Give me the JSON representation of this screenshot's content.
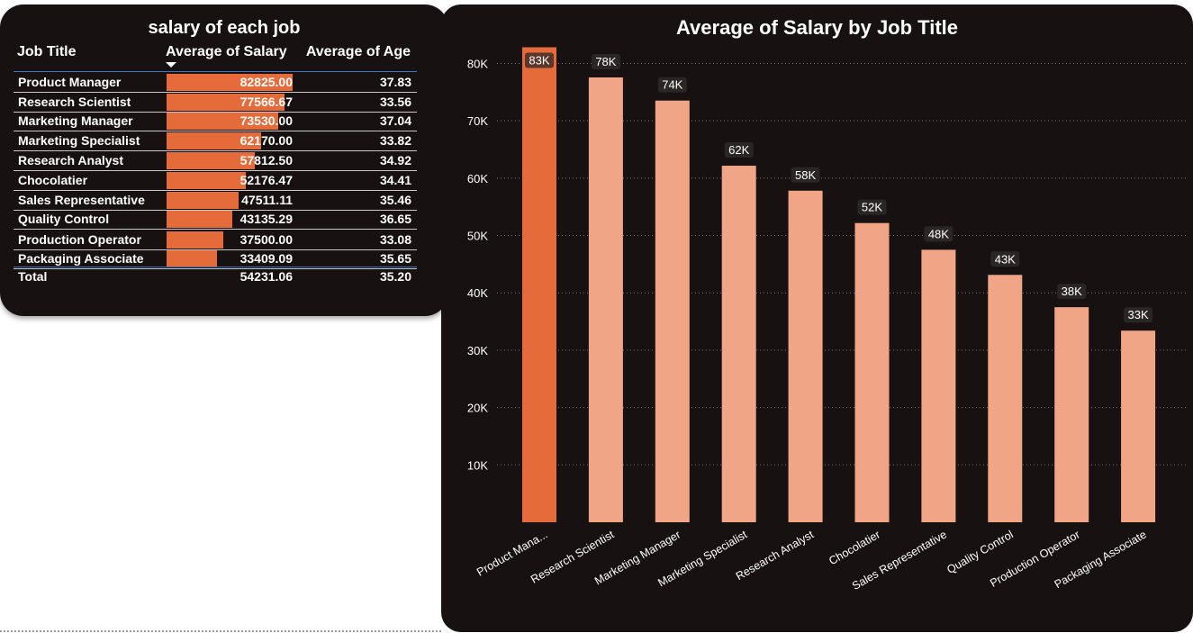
{
  "table": {
    "title": "salary of each job",
    "headers": {
      "job": "Job Title",
      "salary": "Average of Salary",
      "age": "Average of Age"
    },
    "bar_max": 82825.0,
    "bar_color": "#e56c3a",
    "rows": [
      {
        "job": "Product Manager",
        "salary": "82825.00",
        "salary_value": 82825.0,
        "age": "37.83"
      },
      {
        "job": "Research Scientist",
        "salary": "77566.67",
        "salary_value": 77566.67,
        "age": "33.56"
      },
      {
        "job": "Marketing Manager",
        "salary": "73530.00",
        "salary_value": 73530.0,
        "age": "37.04"
      },
      {
        "job": "Marketing Specialist",
        "salary": "62170.00",
        "salary_value": 62170.0,
        "age": "33.82"
      },
      {
        "job": "Research Analyst",
        "salary": "57812.50",
        "salary_value": 57812.5,
        "age": "34.92"
      },
      {
        "job": "Chocolatier",
        "salary": "52176.47",
        "salary_value": 52176.47,
        "age": "34.41"
      },
      {
        "job": "Sales Representative",
        "salary": "47511.11",
        "salary_value": 47511.11,
        "age": "35.46"
      },
      {
        "job": "Quality Control",
        "salary": "43135.29",
        "salary_value": 43135.29,
        "age": "36.65"
      },
      {
        "job": "Production Operator",
        "salary": "37500.00",
        "salary_value": 37500.0,
        "age": "33.08"
      },
      {
        "job": "Packaging Associate",
        "salary": "33409.09",
        "salary_value": 33409.09,
        "age": "35.65"
      }
    ],
    "total": {
      "job": "Total",
      "salary": "54231.06",
      "age": "35.20"
    }
  },
  "chart_data": {
    "type": "bar",
    "title": "Average of Salary by Job Title",
    "xlabel": "",
    "ylabel": "",
    "categories": [
      "Product Mana...",
      "Research Scientist",
      "Marketing Manager",
      "Marketing Specialist",
      "Research Analyst",
      "Chocolatier",
      "Sales Representative",
      "Quality Control",
      "Production Operator",
      "Packaging Associate"
    ],
    "values": [
      82825.0,
      77566.67,
      73530.0,
      62170.0,
      57812.5,
      52176.47,
      47511.11,
      43135.29,
      37500.0,
      33409.09
    ],
    "data_labels": [
      "83K",
      "78K",
      "74K",
      "62K",
      "58K",
      "52K",
      "48K",
      "43K",
      "38K",
      "33K"
    ],
    "yticks": [
      10000,
      20000,
      30000,
      40000,
      50000,
      60000,
      70000,
      80000
    ],
    "ytick_labels": [
      "10K",
      "20K",
      "30K",
      "40K",
      "50K",
      "60K",
      "70K",
      "80K"
    ],
    "ylim": [
      0,
      84000
    ],
    "grid": true,
    "legend": "none",
    "colors": {
      "highlight": "#e56c3a",
      "bar": "#f0a586",
      "label_bg": "#2b2626",
      "gridline": "#7d7575"
    },
    "highlight_index": 0
  }
}
